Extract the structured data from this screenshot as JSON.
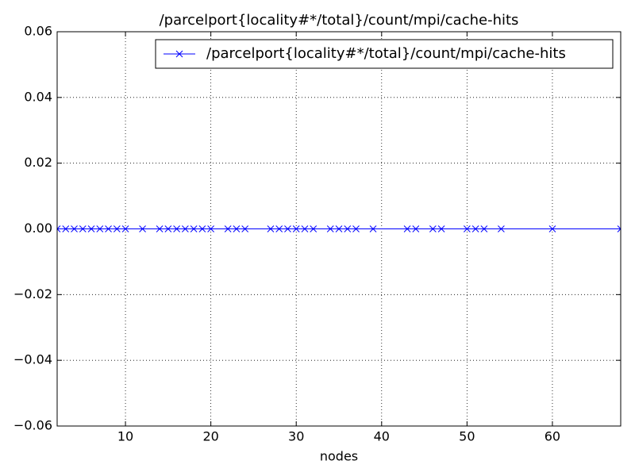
{
  "chart_data": {
    "type": "line",
    "title": "/parcelport{locality#*/total}/count/mpi/cache-hits",
    "xlabel": "nodes",
    "x": [
      2,
      3,
      4,
      5,
      6,
      7,
      8,
      9,
      10,
      12,
      14,
      15,
      16,
      17,
      18,
      19,
      20,
      22,
      23,
      24,
      27,
      28,
      29,
      30,
      31,
      32,
      34,
      35,
      36,
      37,
      39,
      43,
      44,
      46,
      47,
      50,
      51,
      52,
      54,
      60,
      68
    ],
    "series": [
      {
        "name": "/parcelport{locality#*/total}/count/mpi/cache-hits",
        "color": "#0000ff",
        "marker": "x",
        "values": [
          0,
          0,
          0,
          0,
          0,
          0,
          0,
          0,
          0,
          0,
          0,
          0,
          0,
          0,
          0,
          0,
          0,
          0,
          0,
          0,
          0,
          0,
          0,
          0,
          0,
          0,
          0,
          0,
          0,
          0,
          0,
          0,
          0,
          0,
          0,
          0,
          0,
          0,
          0,
          0,
          0
        ]
      }
    ],
    "xlim": [
      2,
      68
    ],
    "xticks": [
      10,
      20,
      30,
      40,
      50,
      60
    ],
    "ylim": [
      -0.06,
      0.06
    ],
    "yticks": [
      {
        "value": -0.06,
        "label": "−0.06"
      },
      {
        "value": -0.04,
        "label": "−0.04"
      },
      {
        "value": -0.02,
        "label": "−0.02"
      },
      {
        "value": 0,
        "label": "0.00"
      },
      0.02,
      0.04,
      0.06
    ],
    "grid": true,
    "legend": "upper right"
  }
}
